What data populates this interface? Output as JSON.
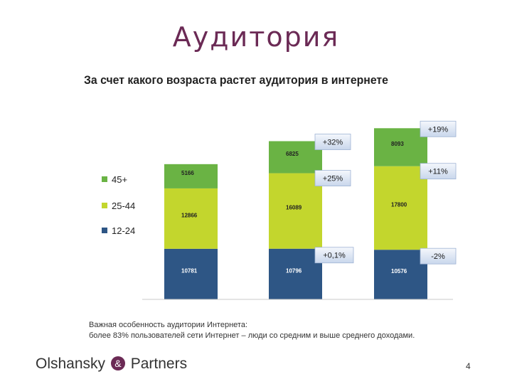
{
  "slide_title": "Аудитория",
  "note": {
    "line1": "Важная особенность аудитории Интернета:",
    "line2": "более 83% пользователей сети Интернет – люди со средним и выше среднего доходами."
  },
  "logo": {
    "part1": "Olshansky",
    "amp": "&",
    "part2": "Partners"
  },
  "page_number": "4",
  "chart_data": {
    "type": "bar",
    "stacked": true,
    "title": "За счет какого возраста растет аудитория в интернете",
    "categories": [
      "",
      "",
      ""
    ],
    "series": [
      {
        "name": "12-24",
        "color": "#2e5685",
        "values": [
          10781,
          10796,
          10576
        ],
        "labels": [
          "10781",
          "10796",
          "10576"
        ],
        "growth": [
          "",
          "+0,1%",
          "-2%"
        ]
      },
      {
        "name": "25-44",
        "color": "#c3d62d",
        "values": [
          12866,
          16089,
          17800
        ],
        "labels": [
          "12866",
          "16089",
          "17800"
        ],
        "growth": [
          "",
          "+25%",
          "+11%"
        ]
      },
      {
        "name": "45+",
        "color": "#6ab344",
        "values": [
          5166,
          6825,
          8093
        ],
        "labels": [
          "5166",
          "6825",
          "8093"
        ],
        "growth": [
          "",
          "+32%",
          "+19%"
        ]
      }
    ],
    "legend_order": [
      "45+",
      "25-44",
      "12-24"
    ],
    "legend_position": "left",
    "ylim": [
      0,
      38000
    ],
    "grid": false
  }
}
